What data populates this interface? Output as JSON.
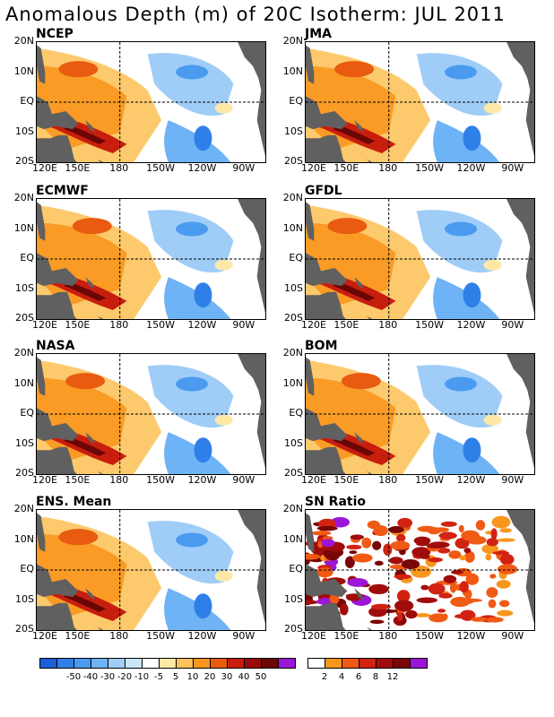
{
  "title": "Anomalous Depth (m) of 20C Isotherm: JUL 2011",
  "lat_labels": [
    "20N",
    "10N",
    "EQ",
    "10S",
    "20S"
  ],
  "lon_labels": [
    "120E",
    "150E",
    "180",
    "150W",
    "120W",
    "90W"
  ],
  "panels": [
    {
      "name": "NCEP",
      "type": "anom"
    },
    {
      "name": "JMA",
      "type": "anom"
    },
    {
      "name": "ECMWF",
      "type": "anom"
    },
    {
      "name": "GFDL",
      "type": "anom"
    },
    {
      "name": "NASA",
      "type": "anom"
    },
    {
      "name": "BOM",
      "type": "anom"
    },
    {
      "name": "ENS. Mean",
      "type": "anom"
    },
    {
      "name": "SN Ratio",
      "type": "sn"
    }
  ],
  "anom_colorbar": {
    "colors": [
      "#1a5fd6",
      "#2f7fe8",
      "#4a9af0",
      "#6eb3f5",
      "#9fcdf8",
      "#c9e6fb",
      "#ffffff",
      "#fde8a6",
      "#fcc35c",
      "#f8961e",
      "#e85b10",
      "#c81e0e",
      "#990a0a",
      "#6a0606",
      "#9b16d6"
    ],
    "labels": [
      "-50",
      "-40",
      "-30",
      "-20",
      "-10",
      "-5",
      "5",
      "10",
      "20",
      "30",
      "40",
      "50"
    ]
  },
  "sn_colorbar": {
    "colors": [
      "#ffffff",
      "#f8961e",
      "#f05a14",
      "#d22212",
      "#a00c0c",
      "#780606",
      "#9b16d6"
    ],
    "labels": [
      "2",
      "4",
      "6",
      "8",
      "12"
    ]
  }
}
